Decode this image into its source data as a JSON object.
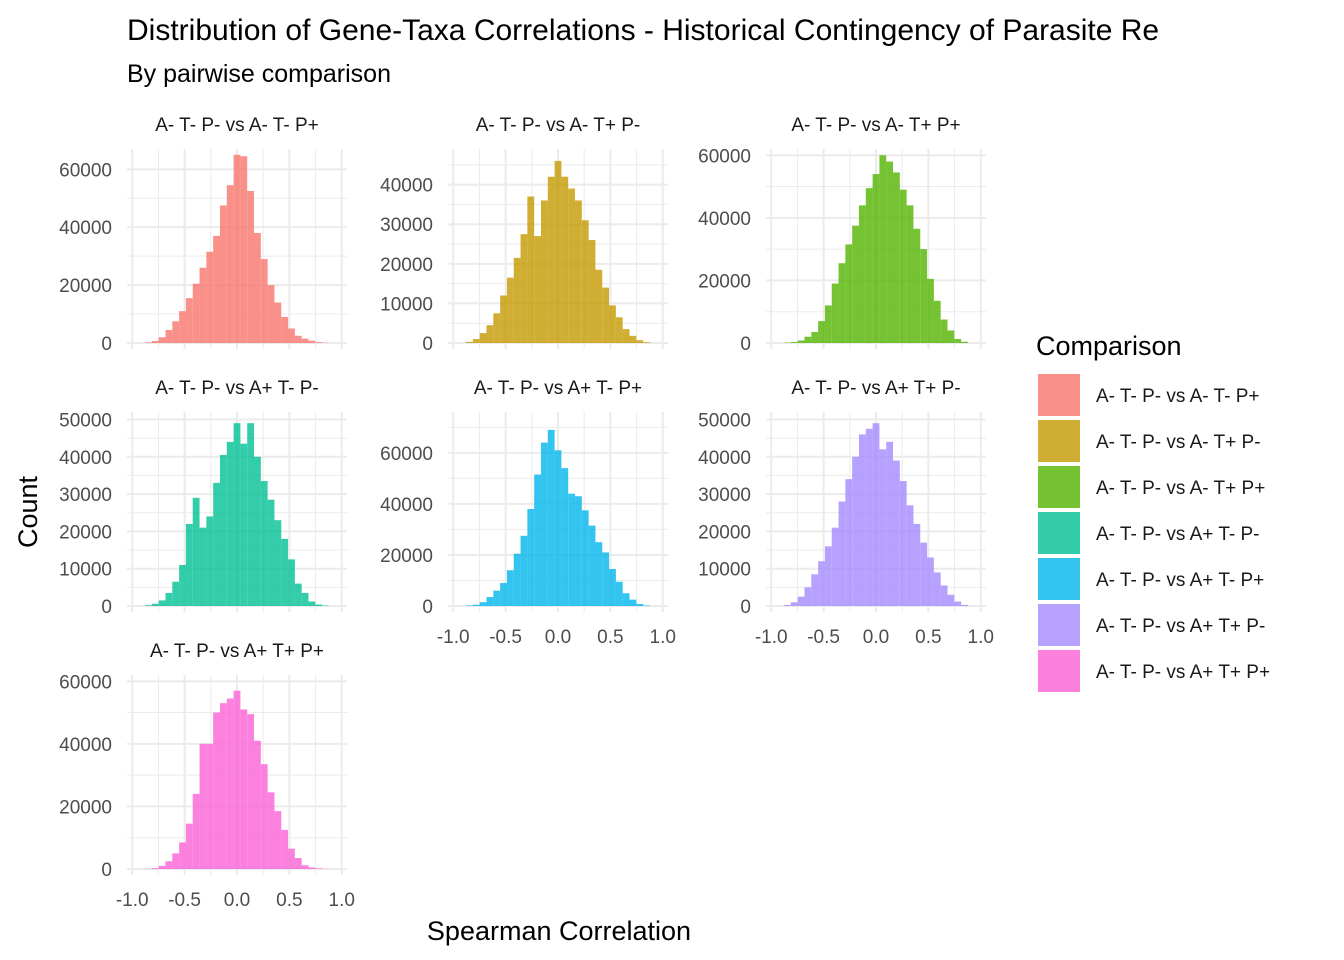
{
  "chart_data": {
    "type": "bar",
    "title": "Distribution of Gene-Taxa Correlations - Historical Contingency of Parasite Re",
    "subtitle": "By pairwise comparison",
    "xlabel": "Spearman Correlation",
    "ylabel": "Count",
    "legend_title": "Comparison",
    "legend_position": "right",
    "grid": true,
    "xlim": [
      -1.05,
      1.05
    ],
    "x_ticks": [
      "-1.0",
      "-0.5",
      "0.0",
      "0.5",
      "1.0"
    ],
    "bin_width": 0.065,
    "series": [
      {
        "name": "A- T- P- vs A- T- P+",
        "color": "#F8766D",
        "ylim": [
          0,
          67000
        ],
        "y_ticks": [
          0,
          20000,
          40000,
          60000
        ],
        "x": [
          -0.845,
          -0.78,
          -0.715,
          -0.65,
          -0.585,
          -0.52,
          -0.455,
          -0.39,
          -0.325,
          -0.26,
          -0.195,
          -0.13,
          -0.065,
          0.0,
          0.065,
          0.13,
          0.195,
          0.26,
          0.325,
          0.39,
          0.455,
          0.52,
          0.585,
          0.65,
          0.715,
          0.78,
          0.845
        ],
        "values": [
          200,
          700,
          2000,
          4500,
          7500,
          11000,
          15500,
          20500,
          26000,
          31500,
          37000,
          47500,
          54500,
          65000,
          64500,
          52500,
          38000,
          29000,
          20000,
          14000,
          9000,
          5000,
          2500,
          1500,
          800,
          300,
          100
        ]
      },
      {
        "name": "A- T- P- vs A- T+ P-",
        "color": "#C49A00",
        "ylim": [
          0,
          49000
        ],
        "y_ticks": [
          0,
          10000,
          20000,
          30000,
          40000
        ],
        "x": [
          -0.845,
          -0.78,
          -0.715,
          -0.65,
          -0.585,
          -0.52,
          -0.455,
          -0.39,
          -0.325,
          -0.26,
          -0.195,
          -0.13,
          -0.065,
          0.0,
          0.065,
          0.13,
          0.195,
          0.26,
          0.325,
          0.39,
          0.455,
          0.52,
          0.585,
          0.65,
          0.715,
          0.78,
          0.845
        ],
        "values": [
          300,
          1000,
          2500,
          4500,
          7500,
          12000,
          16500,
          21500,
          27500,
          37000,
          27000,
          36000,
          42000,
          46000,
          42000,
          39000,
          36000,
          31000,
          26000,
          18500,
          14000,
          9500,
          6500,
          3500,
          1800,
          700,
          200
        ]
      },
      {
        "name": "A- T- P- vs A- T+ P+",
        "color": "#53B400",
        "ylim": [
          0,
          62000
        ],
        "y_ticks": [
          0,
          20000,
          40000,
          60000
        ],
        "x": [
          -0.845,
          -0.78,
          -0.715,
          -0.65,
          -0.585,
          -0.52,
          -0.455,
          -0.39,
          -0.325,
          -0.26,
          -0.195,
          -0.13,
          -0.065,
          0.0,
          0.065,
          0.13,
          0.195,
          0.26,
          0.325,
          0.39,
          0.455,
          0.52,
          0.585,
          0.65,
          0.715,
          0.78,
          0.845
        ],
        "values": [
          100,
          300,
          800,
          2000,
          3500,
          7000,
          12000,
          19000,
          25500,
          31500,
          37500,
          44000,
          49500,
          54000,
          60000,
          58000,
          54500,
          49000,
          44000,
          36500,
          30000,
          20500,
          13500,
          7500,
          4000,
          1300,
          400
        ]
      },
      {
        "name": "A- T- P- vs A+ T- P-",
        "color": "#00C094",
        "ylim": [
          0,
          52000
        ],
        "y_ticks": [
          0,
          10000,
          20000,
          30000,
          40000,
          50000
        ],
        "x": [
          -0.845,
          -0.78,
          -0.715,
          -0.65,
          -0.585,
          -0.52,
          -0.455,
          -0.39,
          -0.325,
          -0.26,
          -0.195,
          -0.13,
          -0.065,
          0.0,
          0.065,
          0.13,
          0.195,
          0.26,
          0.325,
          0.39,
          0.455,
          0.52,
          0.585,
          0.65,
          0.715,
          0.78,
          0.845
        ],
        "values": [
          200,
          600,
          1500,
          3500,
          6500,
          11000,
          22000,
          29000,
          21000,
          24000,
          33000,
          40500,
          44000,
          49000,
          43500,
          49000,
          40000,
          33500,
          28500,
          23000,
          18000,
          12500,
          6000,
          3500,
          1200,
          400,
          100
        ]
      },
      {
        "name": "A- T- P- vs A+ T- P+",
        "color": "#00B6EB",
        "ylim": [
          0,
          76000
        ],
        "y_ticks": [
          0,
          20000,
          40000,
          60000
        ],
        "x": [
          -0.845,
          -0.78,
          -0.715,
          -0.65,
          -0.585,
          -0.52,
          -0.455,
          -0.39,
          -0.325,
          -0.26,
          -0.195,
          -0.13,
          -0.065,
          0.0,
          0.065,
          0.13,
          0.195,
          0.26,
          0.325,
          0.39,
          0.455,
          0.52,
          0.585,
          0.65,
          0.715,
          0.78,
          0.845
        ],
        "values": [
          200,
          500,
          1500,
          3500,
          6000,
          9000,
          14000,
          20500,
          27500,
          38000,
          51500,
          64000,
          69000,
          61000,
          54000,
          44000,
          43000,
          37500,
          31500,
          25000,
          21000,
          14500,
          9500,
          5000,
          2500,
          800,
          200
        ]
      },
      {
        "name": "A- T- P- vs A+ T+ P-",
        "color": "#A58AFF",
        "ylim": [
          0,
          52000
        ],
        "y_ticks": [
          0,
          10000,
          20000,
          30000,
          40000,
          50000
        ],
        "x": [
          -0.845,
          -0.78,
          -0.715,
          -0.65,
          -0.585,
          -0.52,
          -0.455,
          -0.39,
          -0.325,
          -0.26,
          -0.195,
          -0.13,
          -0.065,
          0.0,
          0.065,
          0.13,
          0.195,
          0.26,
          0.325,
          0.39,
          0.455,
          0.52,
          0.585,
          0.65,
          0.715,
          0.78,
          0.845
        ],
        "values": [
          300,
          1000,
          2500,
          5000,
          8500,
          12000,
          16000,
          21000,
          28000,
          34000,
          40000,
          46000,
          47500,
          49000,
          42000,
          44000,
          39000,
          33500,
          27000,
          22000,
          17000,
          13000,
          9000,
          5500,
          3000,
          1200,
          300
        ]
      },
      {
        "name": "A- T- P- vs A+ T+ P+",
        "color": "#FB61D7",
        "ylim": [
          0,
          62000
        ],
        "y_ticks": [
          0,
          20000,
          40000,
          60000
        ],
        "x": [
          -0.845,
          -0.78,
          -0.715,
          -0.65,
          -0.585,
          -0.52,
          -0.455,
          -0.39,
          -0.325,
          -0.26,
          -0.195,
          -0.13,
          -0.065,
          0.0,
          0.065,
          0.13,
          0.195,
          0.26,
          0.325,
          0.39,
          0.455,
          0.52,
          0.585,
          0.65,
          0.715,
          0.78,
          0.845
        ],
        "values": [
          100,
          300,
          1000,
          2500,
          5000,
          8500,
          14500,
          24000,
          40000,
          40000,
          50000,
          53000,
          54500,
          57000,
          51000,
          49500,
          41000,
          33500,
          24500,
          18500,
          12500,
          6500,
          3500,
          1200,
          500,
          200,
          50
        ]
      }
    ]
  }
}
